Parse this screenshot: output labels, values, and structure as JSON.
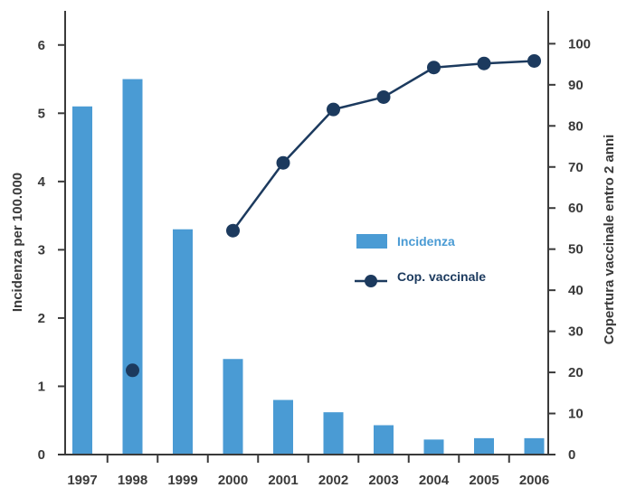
{
  "chart_data": {
    "type": "bar+line",
    "categories": [
      "1997",
      "1998",
      "1999",
      "2000",
      "2001",
      "2002",
      "2003",
      "2004",
      "2005",
      "2006"
    ],
    "series": [
      {
        "name": "Incidenza",
        "type": "bar",
        "axis": "left",
        "color": "#4a9bd4",
        "values": [
          5.1,
          5.5,
          3.3,
          1.4,
          0.8,
          0.62,
          0.43,
          0.22,
          0.24,
          0.24
        ]
      },
      {
        "name": "Cop. vaccinale",
        "type": "line",
        "axis": "right",
        "color": "#1c3a5e",
        "values": [
          null,
          20.5,
          null,
          54.5,
          71,
          84,
          87,
          94.2,
          95.2,
          95.8
        ],
        "connected_from": "2000"
      }
    ],
    "ylabel_left": "Incidenza per 100.000",
    "ylabel_right": "Copertura vaccinale entro 2 anni",
    "ylim_left": [
      0,
      6.5
    ],
    "ylim_right": [
      0,
      108
    ],
    "yticks_left": [
      0,
      1,
      2,
      3,
      4,
      5,
      6
    ],
    "yticks_right": [
      0,
      10,
      20,
      30,
      40,
      50,
      60,
      70,
      80,
      90,
      100
    ],
    "grid": false,
    "legend_position": "center-right",
    "axis_color": "#3a3a3a",
    "text_color": "#3a3a3a"
  }
}
